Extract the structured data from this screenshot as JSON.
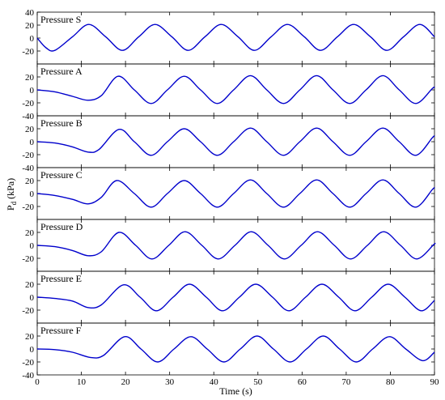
{
  "chart_data": {
    "type": "line",
    "xlabel": "Time (s)",
    "ylabel": "P",
    "ylabel_subscript": "d",
    "ylabel_unit": " (kPa)",
    "xlim": [
      0,
      90
    ],
    "x_ticks": [
      0,
      10,
      20,
      30,
      40,
      50,
      60,
      70,
      80,
      90
    ],
    "grid": false,
    "line_color": "#0000cc",
    "panels": [
      {
        "label": "Pressure S",
        "ylim": [
          -40,
          40
        ],
        "y_ticks": [
          40,
          20,
          0,
          -20
        ],
        "x": [
          0,
          2,
          4,
          8,
          11.7,
          15.5,
          19.3,
          23,
          26.7,
          30.5,
          34.2,
          38,
          41.7,
          45.5,
          49.2,
          53,
          56.7,
          60.5,
          64.2,
          68,
          71.7,
          75.5,
          79.2,
          83,
          86.7,
          90
        ],
        "y": [
          0,
          -15,
          -19,
          2,
          21,
          2,
          -19,
          2,
          21,
          2,
          -19,
          2,
          21,
          2,
          -19,
          2,
          21,
          2,
          -19,
          2,
          21,
          2,
          -19,
          2,
          21,
          2
        ]
      },
      {
        "label": "Pressure A",
        "ylim": [
          -40,
          40
        ],
        "y_ticks": [
          20,
          0,
          -20,
          -40
        ],
        "x": [
          0,
          4,
          8,
          11.5,
          14.5,
          18.3,
          22,
          25.8,
          29.5,
          33.3,
          37,
          40.8,
          44.5,
          48.3,
          52,
          55.8,
          59.5,
          63.3,
          67,
          70.8,
          74.5,
          78.3,
          82,
          85.8,
          89.5,
          90
        ],
        "y": [
          0,
          -3,
          -10,
          -16,
          -9,
          21,
          0,
          -21,
          0,
          21,
          0,
          -21,
          0,
          22,
          0,
          -21,
          0,
          22,
          0,
          -21,
          0,
          22,
          0,
          -21,
          2,
          4
        ]
      },
      {
        "label": "Pressure B",
        "ylim": [
          -40,
          40
        ],
        "y_ticks": [
          20,
          0,
          -20,
          -40
        ],
        "x": [
          0,
          4,
          8,
          11.5,
          14,
          18.5,
          22,
          25.8,
          29.5,
          33.3,
          37,
          40.8,
          44.5,
          48.3,
          52,
          55.8,
          59.5,
          63.3,
          67,
          70.8,
          74.5,
          78.3,
          82,
          85.8,
          89.5,
          90
        ],
        "y": [
          0,
          -2,
          -8,
          -16,
          -12,
          19,
          0,
          -21,
          0,
          20,
          0,
          -21,
          0,
          21,
          0,
          -21,
          0,
          21,
          0,
          -21,
          0,
          21,
          0,
          -21,
          6,
          9
        ]
      },
      {
        "label": "Pressure C",
        "ylim": [
          -40,
          40
        ],
        "y_ticks": [
          20,
          0,
          -20
        ],
        "x": [
          0,
          4,
          8,
          11.5,
          14.5,
          18,
          22,
          25.8,
          29.5,
          33.3,
          37,
          40.8,
          44.5,
          48.3,
          52,
          55.8,
          59.5,
          63.3,
          67,
          70.8,
          74.5,
          78.3,
          82,
          85.8,
          89.5,
          90
        ],
        "y": [
          0,
          -3,
          -9,
          -16,
          -6,
          20,
          0,
          -21,
          0,
          20,
          0,
          -21,
          0,
          21,
          0,
          -21,
          0,
          21,
          0,
          -21,
          0,
          21,
          0,
          -21,
          6,
          9
        ]
      },
      {
        "label": "Pressure D",
        "ylim": [
          -40,
          40
        ],
        "y_ticks": [
          20,
          0,
          -20
        ],
        "x": [
          0,
          4,
          8,
          11.5,
          14.5,
          18.5,
          22.3,
          26,
          29.8,
          33.5,
          37.3,
          41,
          44.8,
          48.5,
          52.3,
          56,
          59.8,
          63.5,
          67.3,
          71,
          74.8,
          78.5,
          82.3,
          86,
          89.8,
          90
        ],
        "y": [
          0,
          -2,
          -8,
          -16,
          -10,
          20,
          0,
          -21,
          0,
          21,
          0,
          -21,
          0,
          21,
          0,
          -21,
          0,
          21,
          0,
          -21,
          0,
          21,
          0,
          -21,
          1,
          2
        ]
      },
      {
        "label": "Pressure E",
        "ylim": [
          -40,
          40
        ],
        "y_ticks": [
          20,
          0,
          -20
        ],
        "x": [
          0,
          4,
          8,
          11.5,
          14.5,
          19.5,
          23.3,
          27,
          30.8,
          34.5,
          38.3,
          42,
          45.8,
          49.5,
          53.3,
          57,
          60.8,
          64.5,
          68.3,
          72,
          75.8,
          79.5,
          83.3,
          87,
          90
        ],
        "y": [
          0,
          -2,
          -6,
          -16,
          -12,
          19,
          0,
          -21,
          0,
          20,
          0,
          -21,
          0,
          20,
          0,
          -21,
          0,
          20,
          0,
          -21,
          0,
          20,
          0,
          -21,
          -5
        ]
      },
      {
        "label": "Pressure F",
        "ylim": [
          -40,
          40
        ],
        "y_ticks": [
          20,
          0,
          -20,
          -40
        ],
        "x": [
          0,
          4,
          8,
          12,
          15,
          19.8,
          23.5,
          27.3,
          31,
          34.8,
          38.5,
          42.3,
          46,
          49.8,
          53.5,
          57.3,
          61,
          64.8,
          68.5,
          72.3,
          76,
          79.8,
          83.5,
          87.3,
          90
        ],
        "y": [
          0,
          -1,
          -5,
          -13,
          -10,
          19,
          0,
          -20,
          0,
          19,
          0,
          -20,
          0,
          20,
          0,
          -20,
          0,
          20,
          0,
          -20,
          0,
          19,
          0,
          -18,
          -5
        ]
      }
    ]
  }
}
